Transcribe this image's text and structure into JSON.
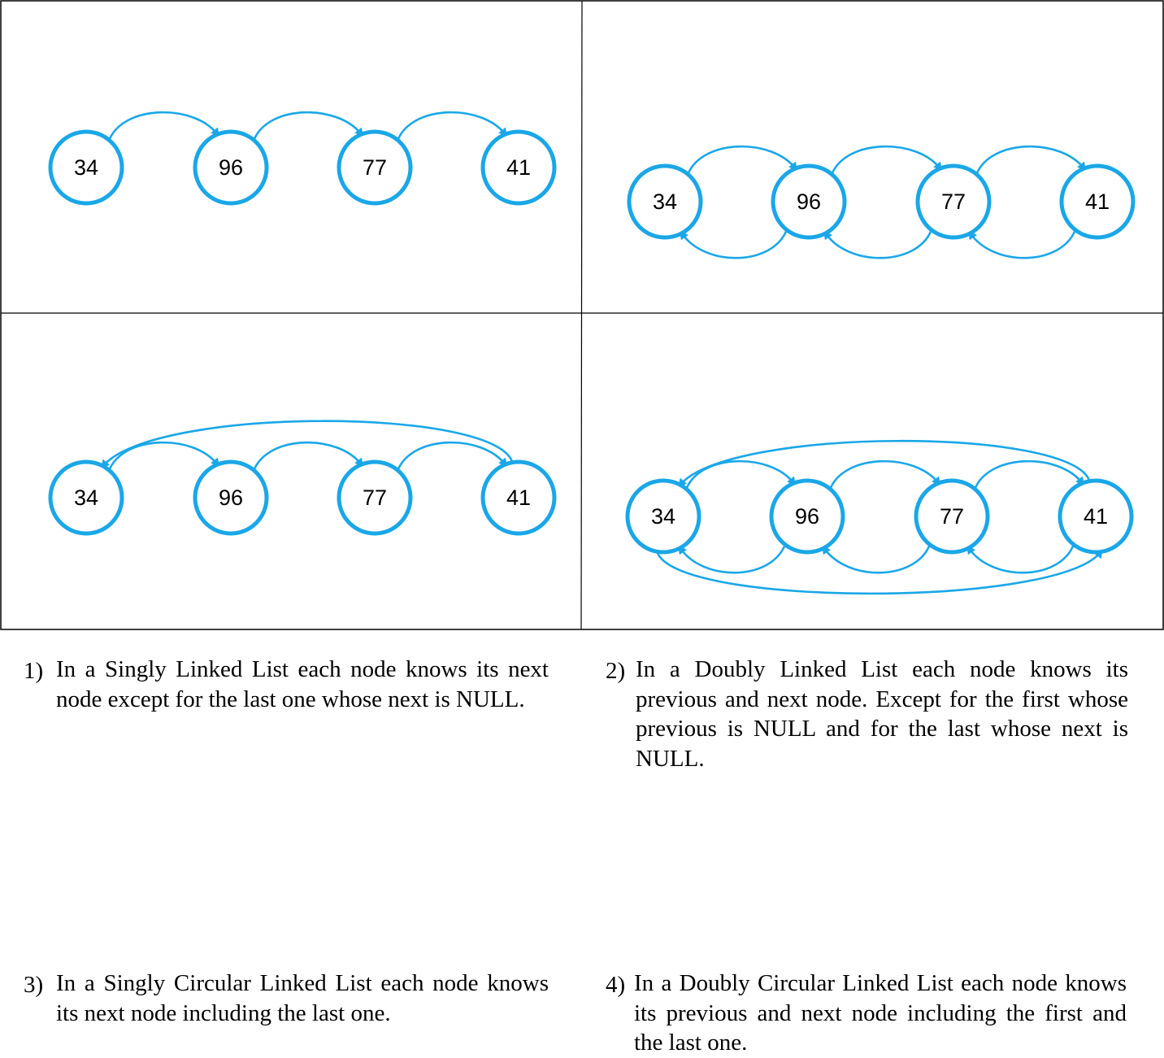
{
  "colors": {
    "accent": "#1aa7e8",
    "border": "#000000",
    "text": "#000000"
  },
  "panels": [
    {
      "id": "singly",
      "number": "1)",
      "text": "In a Singly Linked List each node knows its next node except for the last one whose next is NULL.",
      "nodes": [
        "34",
        "96",
        "77",
        "41"
      ],
      "links": "forward"
    },
    {
      "id": "doubly",
      "number": "2)",
      "text": "In a Doubly Linked List each node knows its previous and next node. Except for the first whose previous is NULL and for the last whose next is NULL.",
      "nodes": [
        "34",
        "96",
        "77",
        "41"
      ],
      "links": "forward-backward"
    },
    {
      "id": "singly-circular",
      "number": "3)",
      "text": "In a Singly Circular Linked List each node knows its next node including the last one.",
      "nodes": [
        "34",
        "96",
        "77",
        "41"
      ],
      "links": "forward-circular"
    },
    {
      "id": "doubly-circular",
      "number": "4)",
      "text": "In a Doubly Circular Linked List each node knows its previous and next node including the first and the last one.",
      "nodes": [
        "34",
        "96",
        "77",
        "41"
      ],
      "links": "forward-backward-circular"
    }
  ]
}
